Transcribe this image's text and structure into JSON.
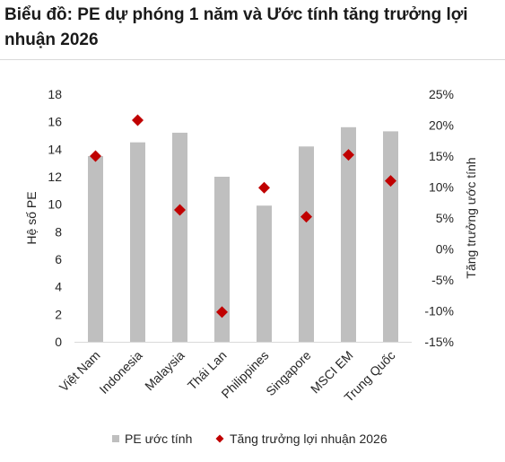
{
  "title": "Biểu đồ: PE dự phóng 1 năm và Ước tính tăng trưởng lợi nhuận 2026",
  "chart_data": {
    "type": "bar",
    "categories": [
      "Việt Nam",
      "Indonesia",
      "Malaysia",
      "Thái Lan",
      "Philippines",
      "Singapore",
      "MSCI EM",
      "Trung Quốc"
    ],
    "series": [
      {
        "name": "PE ước tính",
        "type": "bar",
        "axis": "left",
        "values": [
          13.5,
          14.5,
          15.2,
          12.0,
          9.9,
          14.2,
          15.6,
          15.3
        ]
      },
      {
        "name": "Tăng trưởng lợi nhuận 2026",
        "type": "scatter",
        "axis": "right",
        "values": [
          15.0,
          20.8,
          6.3,
          -10.2,
          9.9,
          5.2,
          15.2,
          11.0
        ]
      }
    ],
    "ylabel": "Hệ số PE",
    "y2label": "Tăng trưởng ước tính",
    "ylim": [
      0,
      18
    ],
    "y2lim": [
      -15,
      25
    ],
    "yticks": [
      "0",
      "2",
      "4",
      "6",
      "8",
      "10",
      "12",
      "14",
      "16",
      "18"
    ],
    "y2ticks": [
      "-15%",
      "-10%",
      "-5%",
      "0%",
      "5%",
      "10%",
      "15%",
      "20%",
      "25%"
    ],
    "grid": false,
    "legend": "bottom",
    "colors": {
      "bar": "#bfbfbf",
      "marker": "#c00000"
    }
  }
}
